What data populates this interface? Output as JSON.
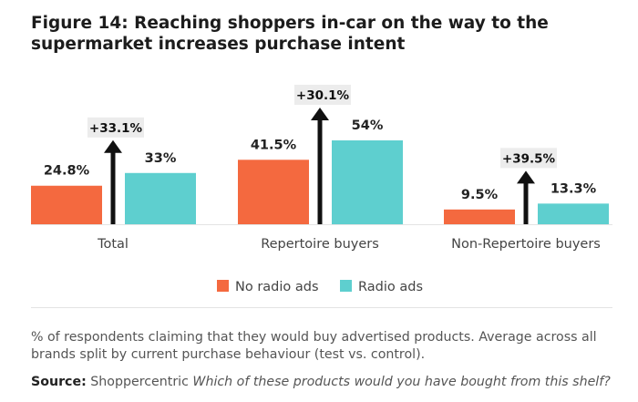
{
  "title": "Figure 14: Reaching shoppers in-car on the way to the supermarket increases purchase intent",
  "footnote": "% of respondents claiming that they would buy advertised products. Average across all brands split by current purchase behaviour (test vs. control).",
  "source": {
    "label": "Source:",
    "text": "Shoppercentric",
    "question": "Which of these products would you have bought from this shelf?"
  },
  "colors": {
    "no_radio": "#f4693f",
    "radio": "#5ecfcf",
    "arrow": "#111111",
    "badge_bg": "#ececec"
  },
  "chart_data": {
    "type": "bar",
    "categories": [
      "Total",
      "Repertoire buyers",
      "Non-Repertoire buyers"
    ],
    "series": [
      {
        "name": "No radio ads",
        "values": [
          24.8,
          41.5,
          9.5
        ],
        "labels": [
          "24.8%",
          "41.5%",
          "9.5%"
        ]
      },
      {
        "name": "Radio ads",
        "values": [
          33,
          54,
          13.3
        ],
        "labels": [
          "33%",
          "54%",
          "13.3%"
        ]
      }
    ],
    "uplift": [
      "+33.1%",
      "+30.1%",
      "+39.5%"
    ],
    "ylim": [
      0,
      54
    ],
    "legend_position": "bottom-center",
    "grid": false
  }
}
